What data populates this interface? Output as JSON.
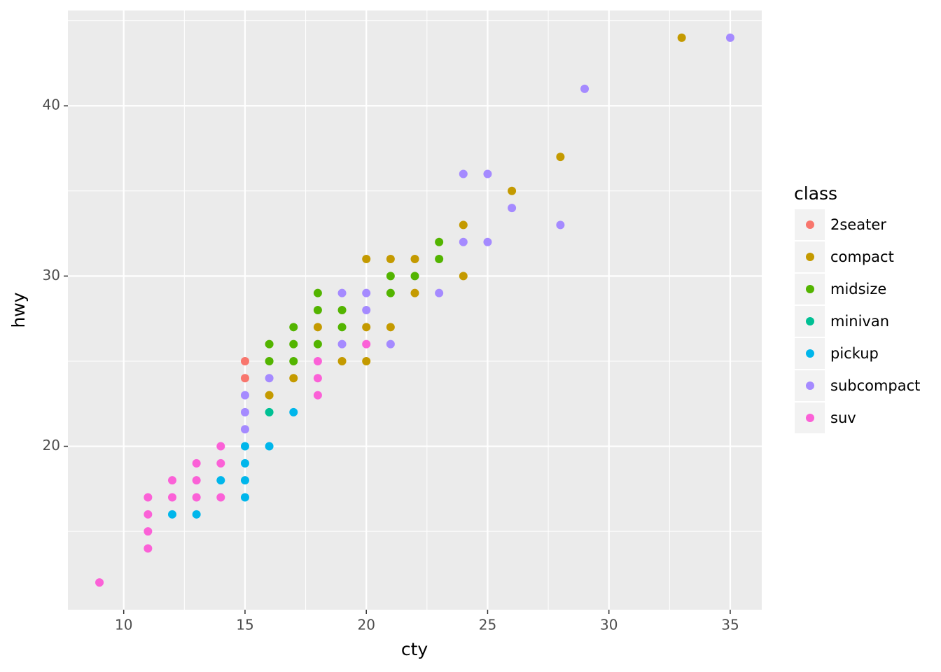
{
  "chart_data": {
    "type": "scatter",
    "x_label": "cty",
    "y_label": "hwy",
    "legend_title": "class",
    "legend_position": "right",
    "grid": true,
    "xlim": [
      7.7,
      36.3
    ],
    "ylim": [
      10.4,
      45.6
    ],
    "xticks": [
      10,
      15,
      20,
      25,
      30,
      35
    ],
    "yticks": [
      20,
      30,
      40
    ],
    "minor_xticks": [
      12.5,
      17.5,
      22.5,
      27.5,
      32.5
    ],
    "minor_yticks": [
      15,
      25,
      35,
      45
    ],
    "series": [
      {
        "name": "2seater",
        "color": "#F8766D",
        "x": [
          15,
          15
        ],
        "values": [
          25,
          24
        ]
      },
      {
        "name": "compact",
        "color": "#C49A00",
        "x": [
          20,
          21,
          22,
          22,
          24,
          24,
          26,
          28,
          33,
          20,
          21,
          18,
          20,
          19,
          17,
          16
        ],
        "values": [
          31,
          31,
          31,
          29,
          30,
          33,
          35,
          37,
          44,
          27,
          27,
          27,
          25,
          25,
          24,
          23
        ]
      },
      {
        "name": "midsize",
        "color": "#53B400",
        "x": [
          23,
          23,
          21,
          22,
          21,
          18,
          18,
          19,
          17,
          19,
          16,
          17,
          18,
          16,
          17
        ],
        "values": [
          32,
          31,
          30,
          30,
          29,
          29,
          28,
          28,
          27,
          27,
          26,
          26,
          26,
          25,
          25
        ]
      },
      {
        "name": "minivan",
        "color": "#00C094",
        "x": [
          16
        ],
        "values": [
          22
        ]
      },
      {
        "name": "pickup",
        "color": "#00B6EB",
        "x": [
          17,
          16,
          15,
          15,
          15,
          14,
          15,
          12,
          13
        ],
        "values": [
          22,
          20,
          20,
          19,
          18,
          18,
          17,
          16,
          16
        ]
      },
      {
        "name": "subcompact",
        "color": "#A58AFF",
        "x": [
          35,
          29,
          24,
          25,
          26,
          28,
          24,
          25,
          23,
          19,
          20,
          20,
          21,
          19,
          16,
          15,
          15,
          15
        ],
        "values": [
          44,
          41,
          36,
          36,
          34,
          33,
          32,
          32,
          29,
          29,
          29,
          28,
          26,
          26,
          24,
          23,
          22,
          21
        ]
      },
      {
        "name": "suv",
        "color": "#FB61D7",
        "x": [
          9,
          11,
          11,
          11,
          11,
          12,
          12,
          13,
          13,
          13,
          14,
          14,
          14,
          18,
          18,
          18,
          20
        ],
        "values": [
          12,
          14,
          15,
          16,
          17,
          17,
          18,
          17,
          18,
          19,
          17,
          19,
          20,
          23,
          24,
          25,
          26
        ]
      }
    ]
  }
}
